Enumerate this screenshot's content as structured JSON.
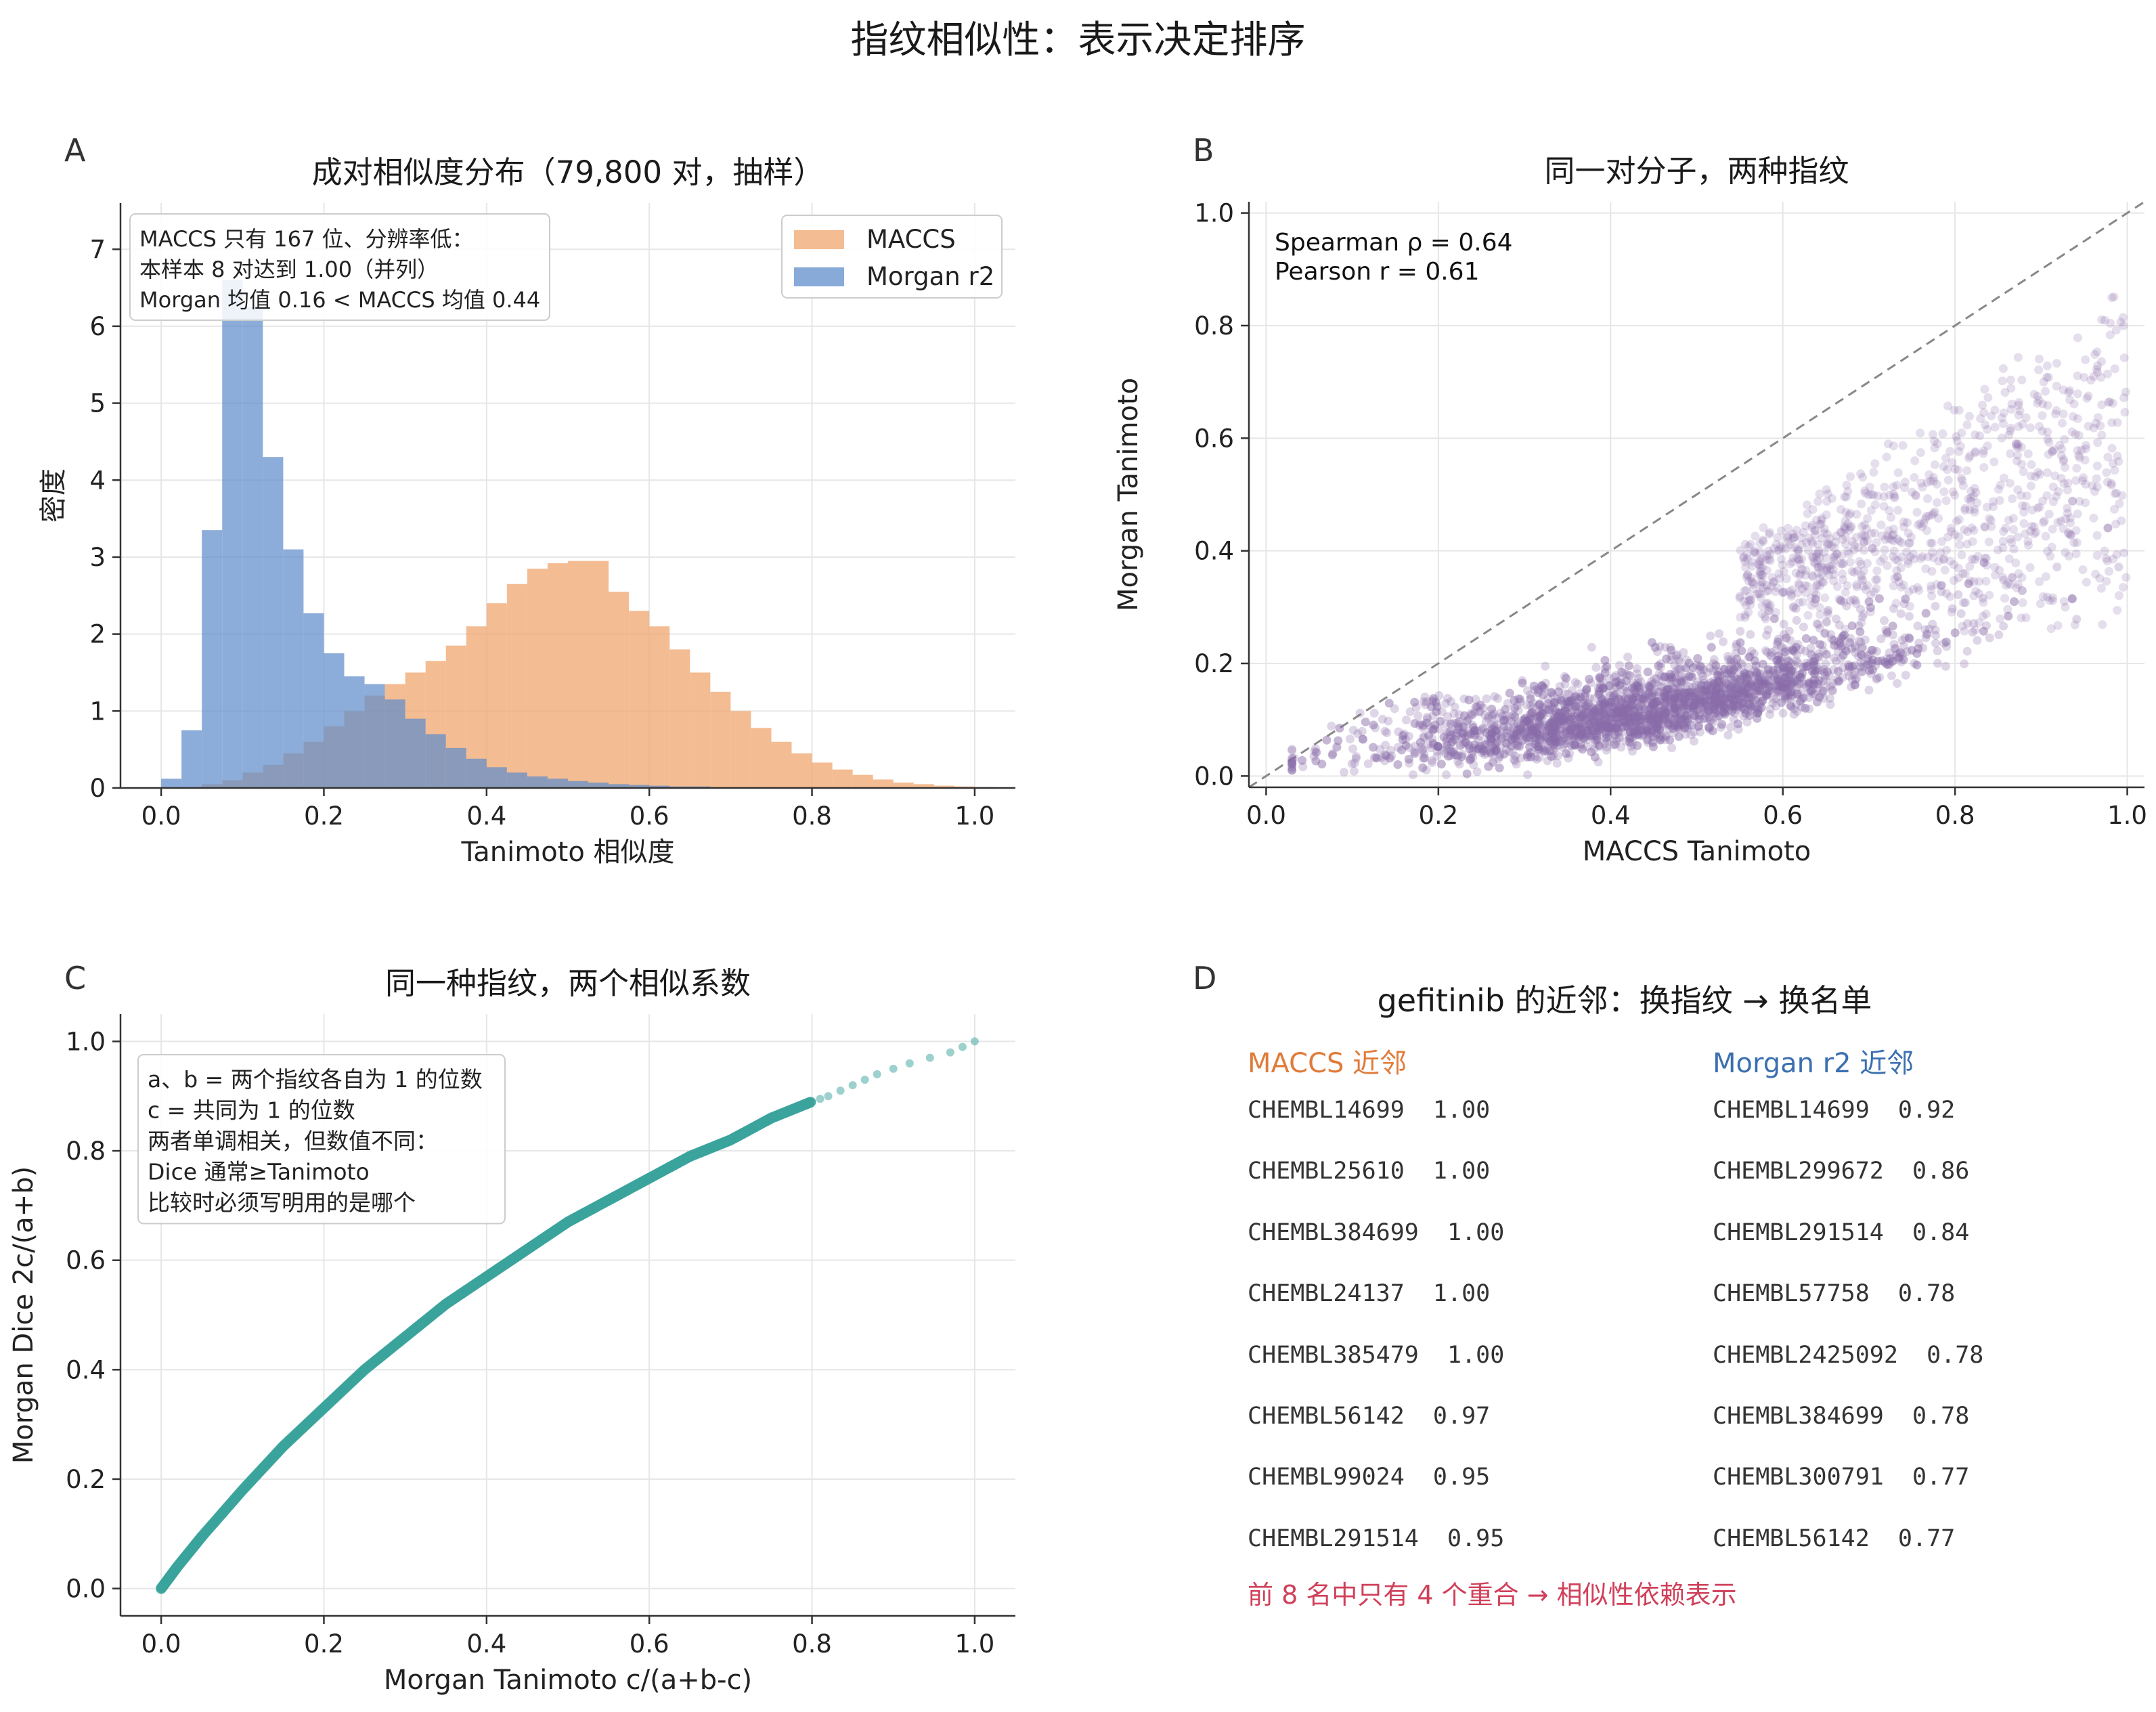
{
  "title": "指纹相似性：表示决定排序",
  "colors": {
    "maccs": "#f0a56e",
    "morgan": "#5f8ecb",
    "scatter": "#8a6aa8",
    "dice": "#3aa39c",
    "maccs_head": "#e07b3a",
    "morgan_head": "#3a6fb0",
    "footnote": "#d0405a"
  },
  "panels": {
    "A": {
      "letter": "A",
      "title": "成对相似度分布（79,800 对，抽样）",
      "xlabel": "Tanimoto 相似度",
      "ylabel": "密度",
      "annotation": [
        "MACCS 只有 167 位、分辨率低：",
        "本样本 8 对达到 1.00（并列）",
        "Morgan 均值 0.16 < MACCS 均值 0.44"
      ],
      "legend": [
        "MACCS",
        "Morgan r2"
      ]
    },
    "B": {
      "letter": "B",
      "title": "同一对分子，两种指纹",
      "xlabel": "MACCS Tanimoto",
      "ylabel": "Morgan Tanimoto",
      "annotation": [
        "Spearman ρ = 0.64",
        "Pearson r = 0.61"
      ]
    },
    "C": {
      "letter": "C",
      "title": "同一种指纹，两个相似系数",
      "xlabel": "Morgan Tanimoto  c/(a+b-c)",
      "ylabel": "Morgan Dice  2c/(a+b)",
      "annotation": [
        "a、b = 两个指纹各自为 1 的位数",
        "c = 共同为 1 的位数",
        "两者单调相关，但数值不同：",
        "Dice 通常≥Tanimoto",
        "比较时必须写明用的是哪个"
      ]
    },
    "D": {
      "letter": "D",
      "title": "gefitinib 的近邻：换指纹 → 换名单",
      "maccs_header": "MACCS 近邻",
      "morgan_header": "Morgan r2 近邻",
      "maccs_rows": [
        "CHEMBL14699  1.00",
        "CHEMBL25610  1.00",
        "CHEMBL384699  1.00",
        "CHEMBL24137  1.00",
        "CHEMBL385479  1.00",
        "CHEMBL56142  0.97",
        "CHEMBL99024  0.95",
        "CHEMBL291514  0.95"
      ],
      "morgan_rows": [
        "CHEMBL14699  0.92",
        "CHEMBL299672  0.86",
        "CHEMBL291514  0.84",
        "CHEMBL57758  0.78",
        "CHEMBL2425092  0.78",
        "CHEMBL384699  0.78",
        "CHEMBL300791  0.77",
        "CHEMBL56142  0.77"
      ],
      "footnote": "前 8 名中只有 4 个重合 → 相似性依赖表示"
    }
  },
  "chart_data": [
    {
      "panel": "A",
      "type": "bar",
      "title": "成对相似度分布（79,800 对，抽样）",
      "xlabel": "Tanimoto 相似度",
      "ylabel": "密度",
      "xlim": [
        -0.05,
        1.05
      ],
      "ylim": [
        0,
        7.6
      ],
      "xticks": [
        0.0,
        0.2,
        0.4,
        0.6,
        0.8,
        1.0
      ],
      "yticks": [
        0,
        1,
        2,
        3,
        4,
        5,
        6,
        7
      ],
      "bin_width": 0.025,
      "bin_start": 0.0,
      "legend_position": "top-right",
      "grid": true,
      "series": [
        {
          "name": "MACCS",
          "values": [
            0.0,
            0.0,
            0.05,
            0.1,
            0.2,
            0.3,
            0.45,
            0.6,
            0.8,
            1.0,
            1.2,
            1.35,
            1.5,
            1.65,
            1.85,
            2.1,
            2.4,
            2.65,
            2.85,
            2.92,
            2.95,
            2.95,
            2.55,
            2.3,
            2.1,
            1.8,
            1.5,
            1.25,
            1.0,
            0.78,
            0.6,
            0.45,
            0.33,
            0.24,
            0.17,
            0.11,
            0.07,
            0.05,
            0.03,
            0.02,
            0.01
          ]
        },
        {
          "name": "Morgan r2",
          "values": [
            0.12,
            0.75,
            3.35,
            6.6,
            6.25,
            4.3,
            3.1,
            2.27,
            1.75,
            1.45,
            1.35,
            1.15,
            0.9,
            0.7,
            0.52,
            0.38,
            0.27,
            0.2,
            0.15,
            0.12,
            0.09,
            0.07,
            0.05,
            0.04,
            0.03,
            0.02,
            0.02,
            0.01,
            0.01,
            0.01,
            0.0,
            0.0,
            0.0,
            0.0,
            0.0,
            0.0,
            0.0,
            0.0,
            0.0,
            0.0,
            0.01
          ]
        }
      ]
    },
    {
      "panel": "B",
      "type": "scatter",
      "title": "同一对分子，两种指纹",
      "xlabel": "MACCS Tanimoto",
      "ylabel": "Morgan Tanimoto",
      "xlim": [
        -0.02,
        1.02
      ],
      "ylim": [
        -0.02,
        1.02
      ],
      "xticks": [
        0.0,
        0.2,
        0.4,
        0.6,
        0.8,
        1.0
      ],
      "yticks": [
        0.0,
        0.2,
        0.4,
        0.6,
        0.8,
        1.0
      ],
      "n_points": 79800,
      "spearman_rho": 0.64,
      "pearson_r": 0.61,
      "reference_line": "y = x",
      "grid": true
    },
    {
      "panel": "C",
      "type": "line",
      "title": "同一种指纹，两个相似系数",
      "xlabel": "Morgan Tanimoto  c/(a+b-c)",
      "ylabel": "Morgan Dice  2c/(a+b)",
      "xlim": [
        -0.05,
        1.05
      ],
      "ylim": [
        -0.05,
        1.05
      ],
      "xticks": [
        0.0,
        0.2,
        0.4,
        0.6,
        0.8,
        1.0
      ],
      "yticks": [
        0.0,
        0.2,
        0.4,
        0.6,
        0.8,
        1.0
      ],
      "x": [
        0.0,
        0.02,
        0.05,
        0.1,
        0.15,
        0.2,
        0.25,
        0.3,
        0.35,
        0.4,
        0.45,
        0.5,
        0.55,
        0.6,
        0.65,
        0.7,
        0.75,
        0.8,
        0.82,
        0.85,
        0.88,
        0.92,
        0.97,
        1.0
      ],
      "y": [
        0.0,
        0.04,
        0.095,
        0.18,
        0.26,
        0.33,
        0.4,
        0.46,
        0.52,
        0.57,
        0.62,
        0.67,
        0.71,
        0.75,
        0.79,
        0.82,
        0.86,
        0.89,
        0.9,
        0.92,
        0.94,
        0.96,
        0.98,
        1.0
      ],
      "grid": true
    }
  ]
}
